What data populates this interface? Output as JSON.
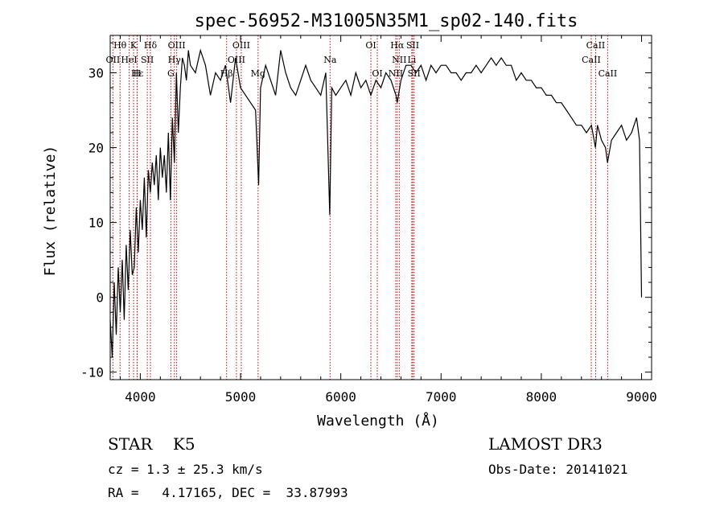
{
  "chart_data": {
    "type": "line",
    "title": "spec-56952-M31005N35M1_sp02-140.fits",
    "xlabel": "Wavelength (Å)",
    "ylabel": "Flux (relative)",
    "xlim": [
      3700,
      9100
    ],
    "ylim": [
      -11,
      35
    ],
    "xticks": [
      4000,
      5000,
      6000,
      7000,
      8000,
      9000
    ],
    "yticks": [
      -10,
      0,
      10,
      20,
      30
    ],
    "spectrum": {
      "name": "flux",
      "x": [
        3700,
        3720,
        3740,
        3760,
        3780,
        3800,
        3820,
        3840,
        3860,
        3880,
        3900,
        3920,
        3940,
        3960,
        3980,
        4000,
        4020,
        4040,
        4060,
        4080,
        4100,
        4120,
        4140,
        4160,
        4180,
        4200,
        4220,
        4240,
        4260,
        4280,
        4300,
        4320,
        4340,
        4360,
        4380,
        4400,
        4420,
        4440,
        4460,
        4480,
        4500,
        4550,
        4600,
        4650,
        4700,
        4750,
        4800,
        4850,
        4900,
        4950,
        5000,
        5050,
        5100,
        5150,
        5180,
        5200,
        5250,
        5300,
        5350,
        5400,
        5450,
        5500,
        5550,
        5600,
        5650,
        5700,
        5750,
        5800,
        5850,
        5890,
        5910,
        5950,
        6000,
        6050,
        6100,
        6150,
        6200,
        6250,
        6300,
        6350,
        6400,
        6450,
        6500,
        6550,
        6563,
        6600,
        6650,
        6700,
        6750,
        6800,
        6850,
        6900,
        6950,
        7000,
        7050,
        7100,
        7150,
        7200,
        7250,
        7300,
        7350,
        7400,
        7450,
        7500,
        7550,
        7600,
        7650,
        7700,
        7750,
        7800,
        7850,
        7900,
        7950,
        8000,
        8050,
        8100,
        8150,
        8200,
        8250,
        8300,
        8350,
        8400,
        8450,
        8500,
        8540,
        8560,
        8600,
        8640,
        8660,
        8700,
        8750,
        8800,
        8850,
        8900,
        8950,
        8980,
        9000
      ],
      "y": [
        -3,
        -8,
        2,
        -5,
        4,
        -2,
        5,
        -3,
        7,
        1,
        9,
        3,
        4,
        12,
        6,
        13,
        9,
        16,
        8,
        17,
        14,
        18,
        15,
        19,
        13,
        20,
        16,
        19,
        14,
        22,
        13,
        24,
        18,
        30,
        22,
        28,
        32,
        31,
        29,
        33,
        31,
        30,
        33,
        31,
        27,
        30,
        29,
        31,
        26,
        32,
        28,
        27,
        26,
        25,
        15,
        28,
        31,
        29,
        27,
        33,
        30,
        28,
        27,
        29,
        31,
        29,
        28,
        27,
        30,
        11,
        28,
        27,
        28,
        29,
        27,
        30,
        28,
        29,
        27,
        29,
        28,
        30,
        29,
        27,
        26,
        29,
        31,
        31,
        30,
        31,
        29,
        31,
        30,
        31,
        31,
        30,
        30,
        29,
        30,
        30,
        31,
        30,
        31,
        32,
        31,
        32,
        31,
        31,
        29,
        30,
        29,
        29,
        28,
        28,
        27,
        27,
        26,
        26,
        25,
        24,
        23,
        23,
        22,
        23,
        20,
        23,
        21,
        20,
        18,
        21,
        22,
        23,
        21,
        22,
        24,
        21,
        0
      ]
    },
    "annotations": [
      {
        "label": "Hθ",
        "x": 3798,
        "row": 0
      },
      {
        "label": "K",
        "x": 3933,
        "row": 0
      },
      {
        "label": "Hδ",
        "x": 4101,
        "row": 0
      },
      {
        "label": "OIII",
        "x": 4363,
        "row": 0
      },
      {
        "label": "OIII",
        "x": 5007,
        "row": 0
      },
      {
        "label": "OI",
        "x": 6300,
        "row": 0
      },
      {
        "label": "Hα",
        "x": 6563,
        "row": 0
      },
      {
        "label": "SII",
        "x": 6717,
        "row": 0
      },
      {
        "label": "CaII",
        "x": 8542,
        "row": 0
      },
      {
        "label": "OII",
        "x": 3727,
        "row": 1
      },
      {
        "label": "HeI",
        "x": 3889,
        "row": 1
      },
      {
        "label": "SII",
        "x": 4070,
        "row": 1
      },
      {
        "label": "Hγ",
        "x": 4340,
        "row": 1
      },
      {
        "label": "OIII",
        "x": 4959,
        "row": 1
      },
      {
        "label": "Na",
        "x": 5893,
        "row": 1
      },
      {
        "label": "NII",
        "x": 6583,
        "row": 1
      },
      {
        "label": "Li",
        "x": 6708,
        "row": 1
      },
      {
        "label": "CaII",
        "x": 8498,
        "row": 1
      },
      {
        "label": "Hε",
        "x": 3970,
        "row": 2
      },
      {
        "label": "H",
        "x": 3968,
        "row": 2
      },
      {
        "label": "G",
        "x": 4305,
        "row": 2
      },
      {
        "label": "Hβ",
        "x": 4861,
        "row": 2
      },
      {
        "label": "Mg",
        "x": 5175,
        "row": 2
      },
      {
        "label": "OI",
        "x": 6364,
        "row": 2
      },
      {
        "label": "NII",
        "x": 6548,
        "row": 2
      },
      {
        "label": "SII",
        "x": 6731,
        "row": 2
      },
      {
        "label": "CaII",
        "x": 8662,
        "row": 2
      }
    ],
    "line_color": "#000000",
    "marker_color": "#cc0000"
  },
  "info": {
    "class_label": "STAR",
    "subclass": "K5",
    "survey": "LAMOST DR3",
    "redshift": "cz = 1.3 ± 25.3 km/s",
    "obs_date": "Obs-Date: 20141021",
    "coords": "RA =   4.17165, DEC =  33.87993"
  }
}
